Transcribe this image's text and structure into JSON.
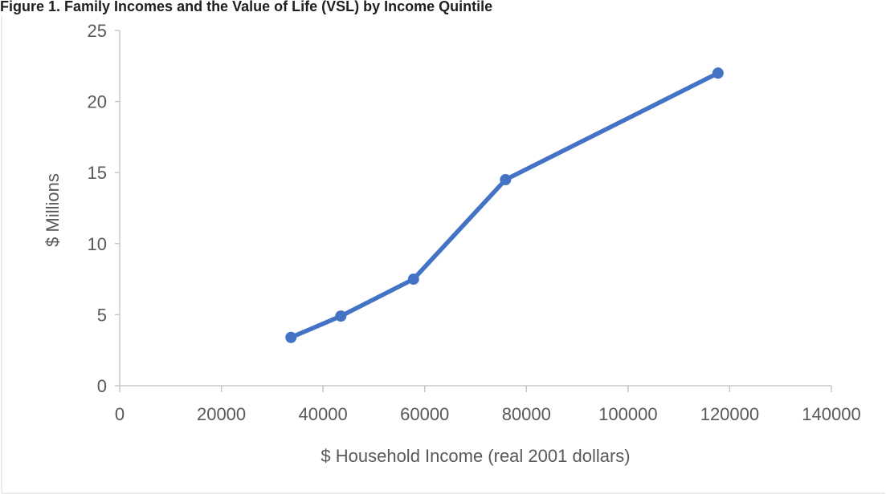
{
  "caption": {
    "text": "Figure 1. Family Incomes and the Value of Life (VSL) by Income Quintile"
  },
  "chart_data": {
    "type": "line",
    "title": "",
    "xlabel": "$ Household Income (real 2001 dollars)",
    "ylabel": "$ Millions",
    "xlim": [
      0,
      140000
    ],
    "ylim": [
      0,
      25
    ],
    "x_ticks": [
      0,
      20000,
      40000,
      60000,
      80000,
      100000,
      120000,
      140000
    ],
    "y_ticks": [
      0,
      5,
      10,
      15,
      20,
      25
    ],
    "x_tick_labels": [
      "0",
      "20000",
      "40000",
      "60000",
      "80000",
      "100000",
      "120000",
      "140000"
    ],
    "y_tick_labels": [
      "0",
      "5",
      "10",
      "15",
      "20",
      "25"
    ],
    "grid": false,
    "legend": "none",
    "series": [
      {
        "color": "#4472C4",
        "markers": true,
        "x": [
          33700,
          43500,
          57800,
          75900,
          117700
        ],
        "y": [
          3.4,
          4.9,
          7.5,
          14.5,
          22.0
        ]
      }
    ]
  }
}
